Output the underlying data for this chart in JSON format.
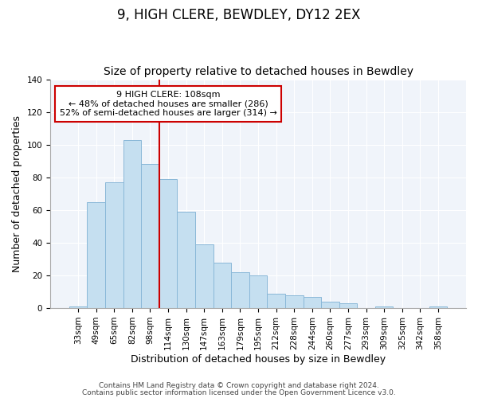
{
  "title": "9, HIGH CLERE, BEWDLEY, DY12 2EX",
  "subtitle": "Size of property relative to detached houses in Bewdley",
  "xlabel": "Distribution of detached houses by size in Bewdley",
  "ylabel": "Number of detached properties",
  "bar_labels": [
    "33sqm",
    "49sqm",
    "65sqm",
    "82sqm",
    "98sqm",
    "114sqm",
    "130sqm",
    "147sqm",
    "163sqm",
    "179sqm",
    "195sqm",
    "212sqm",
    "228sqm",
    "244sqm",
    "260sqm",
    "277sqm",
    "293sqm",
    "309sqm",
    "325sqm",
    "342sqm",
    "358sqm"
  ],
  "bar_values": [
    1,
    65,
    77,
    103,
    88,
    79,
    59,
    39,
    28,
    22,
    20,
    9,
    8,
    7,
    4,
    3,
    0,
    1,
    0,
    0,
    1
  ],
  "bar_color": "#c5dff0",
  "bar_edge_color": "#8ab8d8",
  "vline_x": 5.0,
  "vline_color": "#cc0000",
  "annotation_title": "9 HIGH CLERE: 108sqm",
  "annotation_line1": "← 48% of detached houses are smaller (286)",
  "annotation_line2": "52% of semi-detached houses are larger (314) →",
  "annotation_box_color": "#ffffff",
  "annotation_box_edge": "#cc0000",
  "ylim": [
    0,
    140
  ],
  "yticks": [
    0,
    20,
    40,
    60,
    80,
    100,
    120,
    140
  ],
  "footer1": "Contains HM Land Registry data © Crown copyright and database right 2024.",
  "footer2": "Contains public sector information licensed under the Open Government Licence v3.0.",
  "title_fontsize": 12,
  "subtitle_fontsize": 10,
  "xlabel_fontsize": 9,
  "ylabel_fontsize": 9,
  "tick_fontsize": 7.5,
  "annotation_fontsize": 8,
  "footer_fontsize": 6.5
}
